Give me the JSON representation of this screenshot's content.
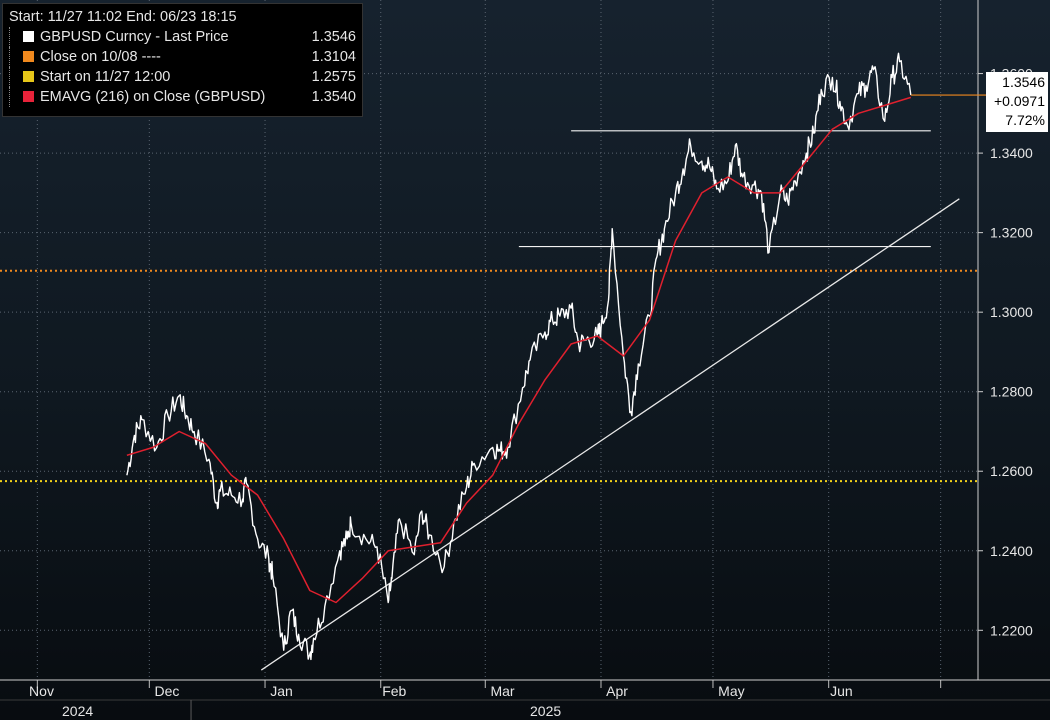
{
  "legend": {
    "header": "Start: 11/27 11:02 End: 06/23 18:15",
    "rows": [
      {
        "label": "GBPUSD Curncy - Last Price",
        "value": "1.3546",
        "color": "#ffffff"
      },
      {
        "label": "Close on 10/08 ----",
        "value": "1.3104",
        "color": "#f0891e"
      },
      {
        "label": "Start on 11/27 12:00",
        "value": "1.2575",
        "color": "#e6c619"
      },
      {
        "label": "EMAVG (216)  on Close (GBPUSD)",
        "value": "1.3540",
        "color": "#e8233a"
      }
    ]
  },
  "last_box": {
    "price": "1.3546",
    "change": "+0.0971",
    "pct": "7.72%"
  },
  "colors": {
    "price": "#ffffff",
    "ema": "#e0202e",
    "close_ref": "#f0891e",
    "start_ref": "#f2d21b",
    "grid": "#5a6470",
    "axis_text": "#e6e6e6"
  },
  "chart_data": {
    "type": "line",
    "ylim": [
      1.2075,
      1.3785
    ],
    "y_ticks": [
      "1.2200",
      "1.2400",
      "1.2600",
      "1.2800",
      "1.3000",
      "1.3200",
      "1.3400",
      "1.3600"
    ],
    "x_ticks": [
      "Nov",
      "Dec",
      "Jan",
      "Feb",
      "Mar",
      "Apr",
      "May",
      "Jun"
    ],
    "year_labels": [
      "2024",
      "2025"
    ],
    "reference_lines": [
      {
        "name": "Close on 10/08",
        "y": 1.3104,
        "style": "dotted",
        "color": "#f0891e"
      },
      {
        "name": "Start on 11/27 12:00",
        "y": 1.2575,
        "style": "dotted",
        "color": "#f2d21b"
      }
    ],
    "resistance_lines": [
      {
        "y": 1.3165,
        "from": "2025-03-10",
        "to": "2025-06-23"
      },
      {
        "y": 1.3456,
        "from": "2025-03-24",
        "to": "2025-06-23"
      }
    ],
    "trendline": {
      "from": [
        "2024-12-31",
        1.21
      ],
      "to": [
        "2025-07-06",
        1.3285
      ]
    },
    "series": [
      {
        "name": "GBPUSD Curncy - Last Price",
        "x": [
          "2024-11-25",
          "2024-11-27",
          "2024-11-29",
          "2024-12-03",
          "2024-12-06",
          "2024-12-09",
          "2024-12-11",
          "2024-12-13",
          "2024-12-17",
          "2024-12-19",
          "2024-12-20",
          "2024-12-23",
          "2024-12-26",
          "2024-12-27",
          "2024-12-30",
          "2025-01-02",
          "2025-01-03",
          "2025-01-06",
          "2025-01-08",
          "2025-01-10",
          "2025-01-13",
          "2025-01-14",
          "2025-01-17",
          "2025-01-21",
          "2025-01-23",
          "2025-01-24",
          "2025-01-28",
          "2025-01-31",
          "2025-02-03",
          "2025-02-04",
          "2025-02-06",
          "2025-02-10",
          "2025-02-12",
          "2025-02-14",
          "2025-02-18",
          "2025-02-21",
          "2025-02-24",
          "2025-02-26",
          "2025-03-03",
          "2025-03-05",
          "2025-03-07",
          "2025-03-11",
          "2025-03-13",
          "2025-03-17",
          "2025-03-19",
          "2025-03-21",
          "2025-03-24",
          "2025-03-26",
          "2025-03-28",
          "2025-03-31",
          "2025-04-01",
          "2025-04-03",
          "2025-04-04",
          "2025-04-07",
          "2025-04-09",
          "2025-04-11",
          "2025-04-14",
          "2025-04-16",
          "2025-04-18",
          "2025-04-21",
          "2025-04-23",
          "2025-04-25",
          "2025-04-28",
          "2025-04-30",
          "2025-05-02",
          "2025-05-05",
          "2025-05-07",
          "2025-05-09",
          "2025-05-12",
          "2025-05-14",
          "2025-05-16",
          "2025-05-19",
          "2025-05-21",
          "2025-05-23",
          "2025-05-26",
          "2025-05-28",
          "2025-05-30",
          "2025-06-02",
          "2025-06-04",
          "2025-06-06",
          "2025-06-09",
          "2025-06-11",
          "2025-06-13",
          "2025-06-16",
          "2025-06-18",
          "2025-06-20",
          "2025-06-23"
        ],
        "y": [
          1.259,
          1.269,
          1.273,
          1.266,
          1.274,
          1.279,
          1.274,
          1.27,
          1.263,
          1.252,
          1.255,
          1.254,
          1.253,
          1.257,
          1.243,
          1.238,
          1.234,
          1.215,
          1.225,
          1.219,
          1.214,
          1.218,
          1.226,
          1.24,
          1.243,
          1.247,
          1.243,
          1.241,
          1.227,
          1.233,
          1.248,
          1.239,
          1.25,
          1.244,
          1.236,
          1.248,
          1.256,
          1.262,
          1.266,
          1.265,
          1.266,
          1.281,
          1.288,
          1.295,
          1.298,
          1.299,
          1.301,
          1.292,
          1.293,
          1.294,
          1.296,
          1.303,
          1.321,
          1.289,
          1.275,
          1.287,
          1.299,
          1.314,
          1.321,
          1.33,
          1.336,
          1.342,
          1.338,
          1.337,
          1.331,
          1.333,
          1.342,
          1.334,
          1.332,
          1.33,
          1.315,
          1.33,
          1.328,
          1.333,
          1.34,
          1.345,
          1.356,
          1.359,
          1.353,
          1.347,
          1.355,
          1.357,
          1.361,
          1.348,
          1.359,
          1.363,
          1.3546
        ]
      },
      {
        "name": "EMAVG (216)  on Close (GBPUSD)",
        "x": [
          "2024-11-25",
          "2024-12-02",
          "2024-12-09",
          "2024-12-16",
          "2024-12-23",
          "2024-12-30",
          "2025-01-06",
          "2025-01-13",
          "2025-01-20",
          "2025-01-27",
          "2025-02-03",
          "2025-02-10",
          "2025-02-17",
          "2025-02-24",
          "2025-03-03",
          "2025-03-10",
          "2025-03-17",
          "2025-03-24",
          "2025-03-31",
          "2025-04-07",
          "2025-04-14",
          "2025-04-21",
          "2025-04-28",
          "2025-05-05",
          "2025-05-12",
          "2025-05-19",
          "2025-05-26",
          "2025-06-02",
          "2025-06-09",
          "2025-06-16",
          "2025-06-23"
        ],
        "y": [
          1.264,
          1.266,
          1.27,
          1.267,
          1.259,
          1.254,
          1.243,
          1.23,
          1.227,
          1.233,
          1.24,
          1.241,
          1.242,
          1.252,
          1.259,
          1.272,
          1.283,
          1.292,
          1.294,
          1.289,
          1.298,
          1.318,
          1.33,
          1.334,
          1.33,
          1.33,
          1.338,
          1.346,
          1.35,
          1.352,
          1.354
        ]
      }
    ]
  }
}
